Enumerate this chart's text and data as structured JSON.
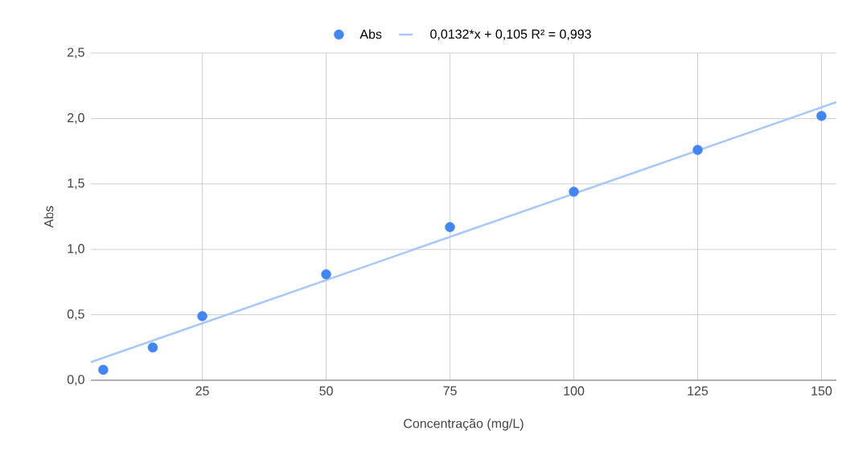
{
  "chart_data": {
    "type": "scatter",
    "xlabel": "Concentração (mg/L)",
    "ylabel": "Abs",
    "xlim": [
      2.5,
      153
    ],
    "ylim": [
      0,
      2.5
    ],
    "xticks": [
      25,
      50,
      75,
      100,
      125,
      150
    ],
    "yticks": [
      {
        "value": 0,
        "label": "0,0"
      },
      {
        "value": 0.5,
        "label": "0,5"
      },
      {
        "value": 1,
        "label": "1,0"
      },
      {
        "value": 1.5,
        "label": "1,5"
      },
      {
        "value": 2,
        "label": "2,0"
      },
      {
        "value": 2.5,
        "label": "2,5"
      }
    ],
    "grid": true,
    "legend": "top",
    "series": [
      {
        "name": "Abs",
        "color": "#4285f4",
        "marker": "circle",
        "x": [
          5,
          15,
          25,
          50,
          75,
          100,
          125,
          150
        ],
        "values": [
          0.08,
          0.25,
          0.49,
          0.81,
          1.17,
          1.44,
          1.76,
          2.02
        ]
      },
      {
        "name": "0,0132*x + 0,105 R² = 0,993",
        "type": "line",
        "color": "#a8c7fa",
        "marker": "none",
        "x": [
          2.5,
          153
        ],
        "values": [
          0.138,
          2.125
        ]
      }
    ]
  }
}
